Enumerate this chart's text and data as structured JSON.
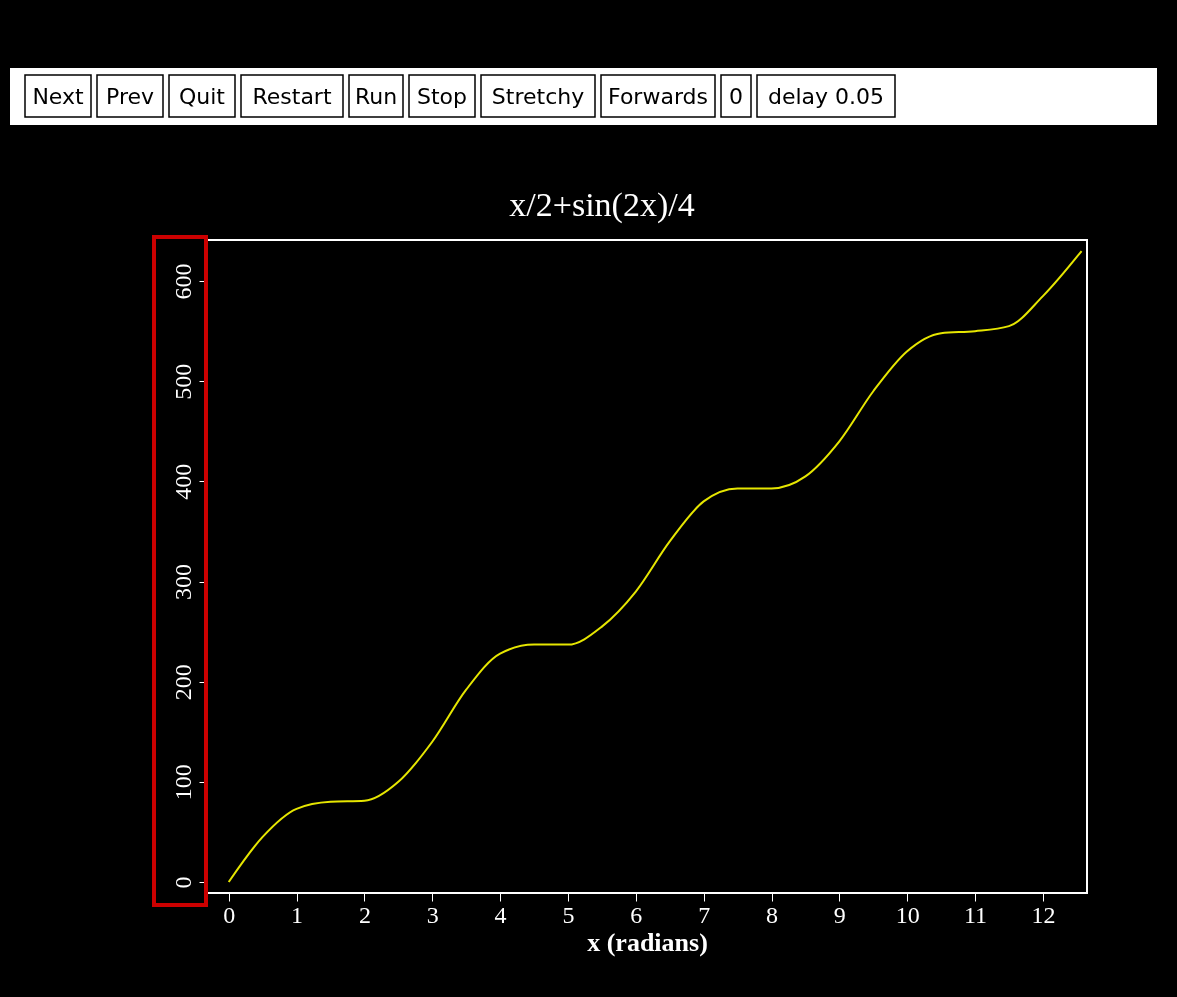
{
  "chart_data": {
    "type": "line",
    "title": "x/2+sin(2x)/4",
    "xlabel": "x (radians)",
    "x": [
      0,
      0.5,
      1,
      1.5,
      2,
      2.5,
      3,
      3.5,
      4,
      4.5,
      5,
      5.5,
      6,
      6.5,
      7,
      7.5,
      8,
      8.5,
      9,
      9.5,
      10,
      10.5,
      11,
      11.5,
      12,
      12.57
    ],
    "series": [
      {
        "color": "#e6e600",
        "values": [
          0,
          45,
          73,
          80,
          81,
          100,
          140,
          192,
          228,
          237,
          237,
          255,
          290,
          340,
          380,
          393,
          393,
          405,
          440,
          490,
          530,
          548,
          550,
          555,
          585,
          630
        ]
      }
    ],
    "xlim": [
      -0.32,
      12.65
    ],
    "ylim": [
      -11,
      641
    ],
    "xticks": [
      0,
      1,
      2,
      3,
      4,
      5,
      6,
      7,
      8,
      9,
      10,
      11,
      12
    ],
    "yticks": [
      0,
      100,
      200,
      300,
      400,
      500,
      600
    ],
    "annotations": [
      "Next",
      "Prev",
      "Quit",
      "Restart",
      "Run",
      "Stop",
      "Stretchy",
      "Forwards",
      "0",
      "delay 0.05"
    ],
    "grid": false,
    "marker": "none",
    "line_style": "solid"
  }
}
